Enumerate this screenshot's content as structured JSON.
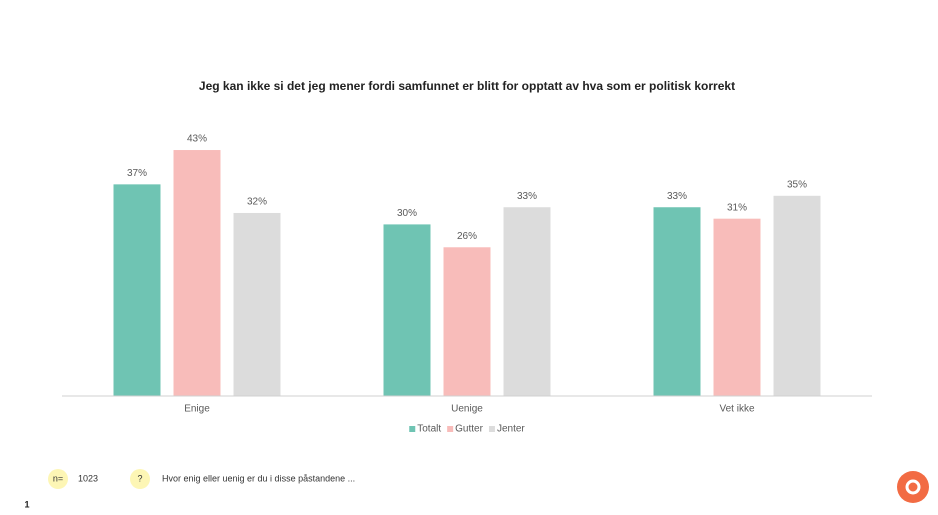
{
  "chart_data": {
    "type": "bar",
    "title": "Jeg kan ikke si det jeg mener fordi samfunnet er blitt for opptatt av hva som er politisk korrekt",
    "categories": [
      "Enige",
      "Uenige",
      "Vet ikke"
    ],
    "series": [
      {
        "name": "Totalt",
        "color": "#6fc4b3",
        "values": [
          37,
          30,
          33
        ],
        "value_labels": [
          "37%",
          "30%",
          "33%"
        ]
      },
      {
        "name": "Gutter",
        "color": "#f8bcba",
        "values": [
          43,
          26,
          31
        ],
        "value_labels": [
          "43%",
          "26%",
          "31%"
        ]
      },
      {
        "name": "Jenter",
        "color": "#dcdcdc",
        "values": [
          32,
          33,
          35
        ],
        "value_labels": [
          "32%",
          "33%",
          "35%"
        ]
      }
    ],
    "ylim": [
      0,
      50
    ],
    "legend": "bottom"
  },
  "footer": {
    "n_label": "n=",
    "n": 1023,
    "question_icon": "?",
    "question": "Hvor enig eller uenig er du i disse påstandene ..."
  },
  "page_number": "1"
}
